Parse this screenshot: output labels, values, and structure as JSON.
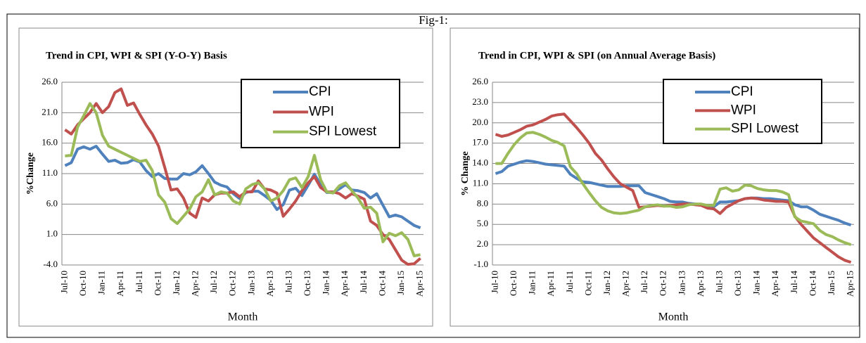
{
  "title": "Fig-1:",
  "chart_data": [
    {
      "type": "line",
      "title": "Trend in CPI, WPI & SPI (Y-O-Y) Basis",
      "x_label": "Month",
      "y_label": "%Change",
      "categories": [
        "Jul-10",
        null,
        null,
        "Oct-10",
        null,
        null,
        "Jan-11",
        null,
        null,
        "Apr-11",
        null,
        null,
        "Jul-11",
        null,
        null,
        "Oct-11",
        null,
        null,
        "Jan-12",
        null,
        null,
        "Apr-12",
        null,
        null,
        "Jul-12",
        null,
        null,
        "Oct-12",
        null,
        null,
        "Jan-13",
        null,
        null,
        "Apr-13",
        null,
        null,
        "Jul-13",
        null,
        null,
        "Oct-13",
        null,
        null,
        "Jan-14",
        null,
        null,
        "Apr-14",
        null,
        null,
        "Jul-14",
        null,
        null,
        "Oct-14",
        null,
        null,
        "Jan-15",
        null,
        null,
        "Apr-15"
      ],
      "ylim": [
        -4,
        26
      ],
      "yticks": [
        {
          "value": -4,
          "label": "-4.0"
        },
        {
          "value": 1,
          "label": "1.0"
        },
        {
          "value": 6,
          "label": "6.0"
        },
        {
          "value": 11,
          "label": "11.0"
        },
        {
          "value": 16,
          "label": "16.0"
        },
        {
          "value": 21,
          "label": "21.0"
        },
        {
          "value": 26,
          "label": "26.0"
        }
      ],
      "grid": true,
      "series": [
        {
          "name": "CPI",
          "color": "#4f81bd",
          "values": [
            12.3,
            12.8,
            15.0,
            15.4,
            15.0,
            15.5,
            14.2,
            13.0,
            13.2,
            12.7,
            12.8,
            13.3,
            12.9,
            11.5,
            10.5,
            11.0,
            10.2,
            10.1,
            10.1,
            11.0,
            10.8,
            11.3,
            12.3,
            11.0,
            9.6,
            9.1,
            8.8,
            7.7,
            6.9,
            7.9,
            8.1,
            8.1,
            7.4,
            6.6,
            5.1,
            5.9,
            8.3,
            8.6,
            7.4,
            9.1,
            10.9,
            9.2,
            7.9,
            7.9,
            8.5,
            9.2,
            8.3,
            8.2,
            7.9,
            7.0,
            7.7,
            5.8,
            3.9,
            4.2,
            3.9,
            3.2,
            2.5,
            2.1
          ]
        },
        {
          "name": "WPI",
          "color": "#c0504d",
          "values": [
            18.2,
            17.5,
            19.0,
            20.0,
            21.0,
            22.5,
            21.0,
            22.0,
            24.3,
            24.9,
            22.2,
            22.6,
            20.7,
            19.0,
            17.5,
            15.5,
            12.0,
            8.3,
            8.5,
            7.0,
            4.5,
            3.8,
            7.0,
            6.5,
            7.5,
            7.8,
            7.8,
            8.0,
            7.2,
            8.0,
            8.0,
            9.8,
            8.5,
            8.3,
            7.8,
            4.0,
            5.2,
            6.5,
            8.2,
            9.5,
            10.5,
            8.7,
            8.0,
            8.0,
            7.7,
            7.0,
            7.7,
            7.3,
            6.8,
            3.2,
            2.5,
            1.0,
            0.2,
            -1.5,
            -3.2,
            -3.9,
            -3.8,
            -2.9
          ]
        },
        {
          "name": "SPI Lowest",
          "color": "#9bbb59",
          "values": [
            13.9,
            14.0,
            18.6,
            20.5,
            22.5,
            21.0,
            17.3,
            15.5,
            15.0,
            14.5,
            14.0,
            13.5,
            13.0,
            13.2,
            11.5,
            7.5,
            6.3,
            3.6,
            2.8,
            4.0,
            5.2,
            7.2,
            8.0,
            10.0,
            7.5,
            8.0,
            7.8,
            6.5,
            6.0,
            8.5,
            9.2,
            9.5,
            8.5,
            6.5,
            7.0,
            8.2,
            10.0,
            10.3,
            8.7,
            10.5,
            14.0,
            10.0,
            8.0,
            7.8,
            9.0,
            9.5,
            8.2,
            7.0,
            5.3,
            5.5,
            4.5,
            -0.2,
            1.2,
            0.8,
            1.3,
            0.2,
            -2.5,
            -2.3
          ]
        }
      ]
    },
    {
      "type": "line",
      "title": "Trend in CPI, WPI & SPI (on Annual Average Basis)",
      "x_label": "Month",
      "y_label": "% Change",
      "categories": [
        "Jul-10",
        null,
        null,
        "Oct-10",
        null,
        null,
        "Jan-11",
        null,
        null,
        "Apr-11",
        null,
        null,
        "Jul-11",
        null,
        null,
        "Oct-11",
        null,
        null,
        "Jan-12",
        null,
        null,
        "Apr-12",
        null,
        null,
        "Jul-12",
        null,
        null,
        "Oct-12",
        null,
        null,
        "Jan-13",
        null,
        null,
        "Apr-13",
        null,
        null,
        "Jul-13",
        null,
        null,
        "Oct-13",
        null,
        null,
        "Jan-14",
        null,
        null,
        "Apr-14",
        null,
        null,
        "Jul-14",
        null,
        null,
        "Oct-14",
        null,
        null,
        "Jan-15",
        null,
        null,
        "Apr-15"
      ],
      "ylim": [
        -1,
        26
      ],
      "yticks": [
        {
          "value": -1,
          "label": "-1.0"
        },
        {
          "value": 2,
          "label": "2.0"
        },
        {
          "value": 5,
          "label": "5.0"
        },
        {
          "value": 8,
          "label": "8.0"
        },
        {
          "value": 11,
          "label": "11.0"
        },
        {
          "value": 14,
          "label": "14.0"
        },
        {
          "value": 17,
          "label": "17.0"
        },
        {
          "value": 20,
          "label": "20.0"
        },
        {
          "value": 23,
          "label": "23.0"
        },
        {
          "value": 26,
          "label": "26.0"
        }
      ],
      "grid": true,
      "series": [
        {
          "name": "CPI",
          "color": "#4f81bd",
          "values": [
            12.5,
            12.8,
            13.6,
            13.9,
            14.2,
            14.4,
            14.3,
            14.1,
            13.9,
            13.8,
            13.7,
            13.6,
            12.4,
            11.8,
            11.3,
            11.2,
            11.0,
            10.8,
            10.6,
            10.6,
            10.6,
            10.7,
            10.7,
            10.7,
            9.7,
            9.4,
            9.1,
            8.8,
            8.4,
            8.3,
            8.3,
            8.1,
            8.0,
            7.9,
            7.7,
            7.6,
            8.3,
            8.3,
            8.4,
            8.5,
            8.8,
            8.9,
            8.9,
            8.8,
            8.8,
            8.7,
            8.6,
            8.5,
            7.9,
            7.6,
            7.6,
            7.1,
            6.5,
            6.2,
            5.9,
            5.6,
            5.2,
            4.9
          ]
        },
        {
          "name": "WPI",
          "color": "#c0504d",
          "values": [
            18.3,
            18.0,
            18.2,
            18.6,
            19.0,
            19.5,
            19.7,
            20.1,
            20.5,
            21.0,
            21.2,
            21.3,
            20.3,
            19.3,
            18.2,
            17.0,
            15.5,
            14.5,
            13.2,
            12.0,
            11.0,
            10.5,
            10.0,
            7.5,
            7.6,
            7.7,
            7.8,
            7.7,
            7.8,
            7.9,
            8.0,
            8.0,
            7.9,
            7.8,
            7.4,
            7.3,
            6.6,
            7.5,
            8.0,
            8.5,
            8.8,
            8.9,
            8.8,
            8.6,
            8.5,
            8.4,
            8.4,
            8.3,
            6.2,
            5.0,
            4.0,
            3.0,
            2.3,
            1.6,
            0.9,
            0.2,
            -0.3,
            -0.6
          ]
        },
        {
          "name": "SPI Lowest",
          "color": "#9bbb59",
          "values": [
            14.0,
            14.0,
            15.5,
            16.8,
            17.8,
            18.5,
            18.6,
            18.3,
            17.9,
            17.4,
            17.1,
            16.6,
            13.5,
            12.5,
            11.0,
            9.7,
            8.5,
            7.5,
            7.0,
            6.7,
            6.6,
            6.7,
            6.9,
            7.1,
            7.6,
            7.8,
            7.9,
            7.7,
            7.7,
            7.5,
            7.6,
            7.9,
            8.0,
            8.0,
            7.8,
            7.8,
            10.2,
            10.4,
            9.9,
            10.1,
            10.8,
            10.7,
            10.3,
            10.1,
            10.0,
            10.0,
            9.8,
            9.4,
            6.1,
            5.5,
            5.3,
            5.1,
            4.1,
            3.5,
            3.2,
            2.7,
            2.3,
            2.0
          ]
        }
      ]
    }
  ]
}
